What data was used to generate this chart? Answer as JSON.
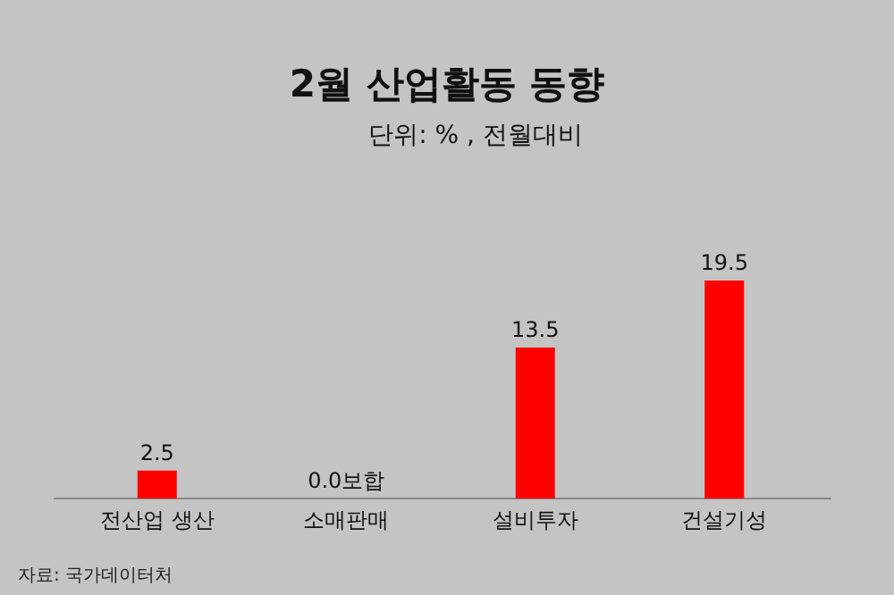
{
  "chart_data": {
    "type": "bar",
    "title": "2월 산업활동 동향",
    "subtitle": "단위: % , 전월대비",
    "categories": [
      "전산업 생산",
      "소매판매",
      "설비투자",
      "건설기성"
    ],
    "values": [
      2.5,
      0.0,
      13.5,
      19.5
    ],
    "value_labels": [
      "2.5",
      "0.0보합",
      "13.5",
      "19.5"
    ],
    "color": "#ff0000",
    "annotations": [
      "자료: 국가데이터처"
    ]
  }
}
